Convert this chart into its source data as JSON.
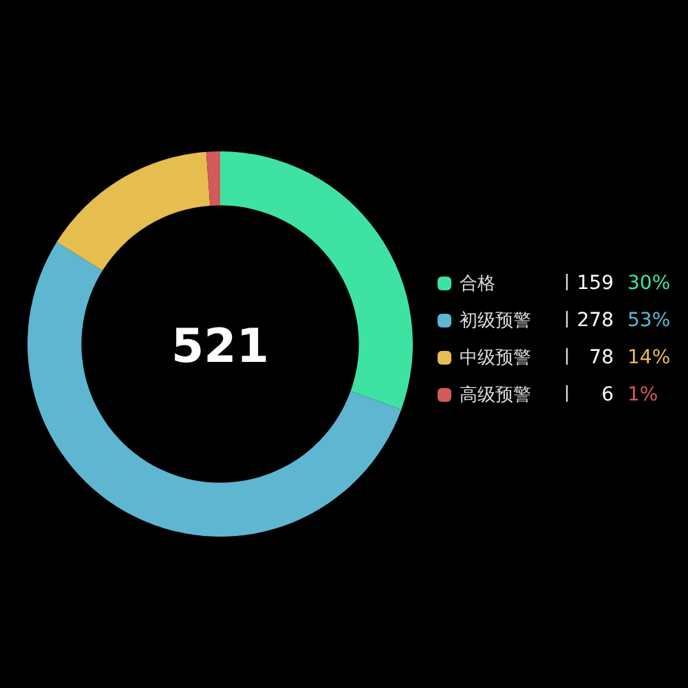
{
  "chart_data": {
    "type": "donut",
    "title": "521",
    "categories": [
      "合格",
      "初级预警",
      "中级预警",
      "高级预警"
    ],
    "values": [
      159,
      278,
      78,
      6
    ],
    "colors": [
      "#3ee3a3",
      "#5fb6d0",
      "#e6bd4f",
      "#d4595a"
    ],
    "data_labels": true,
    "annotations": [
      "30%",
      "53%",
      "14%",
      "1%"
    ],
    "legend": "right"
  }
}
